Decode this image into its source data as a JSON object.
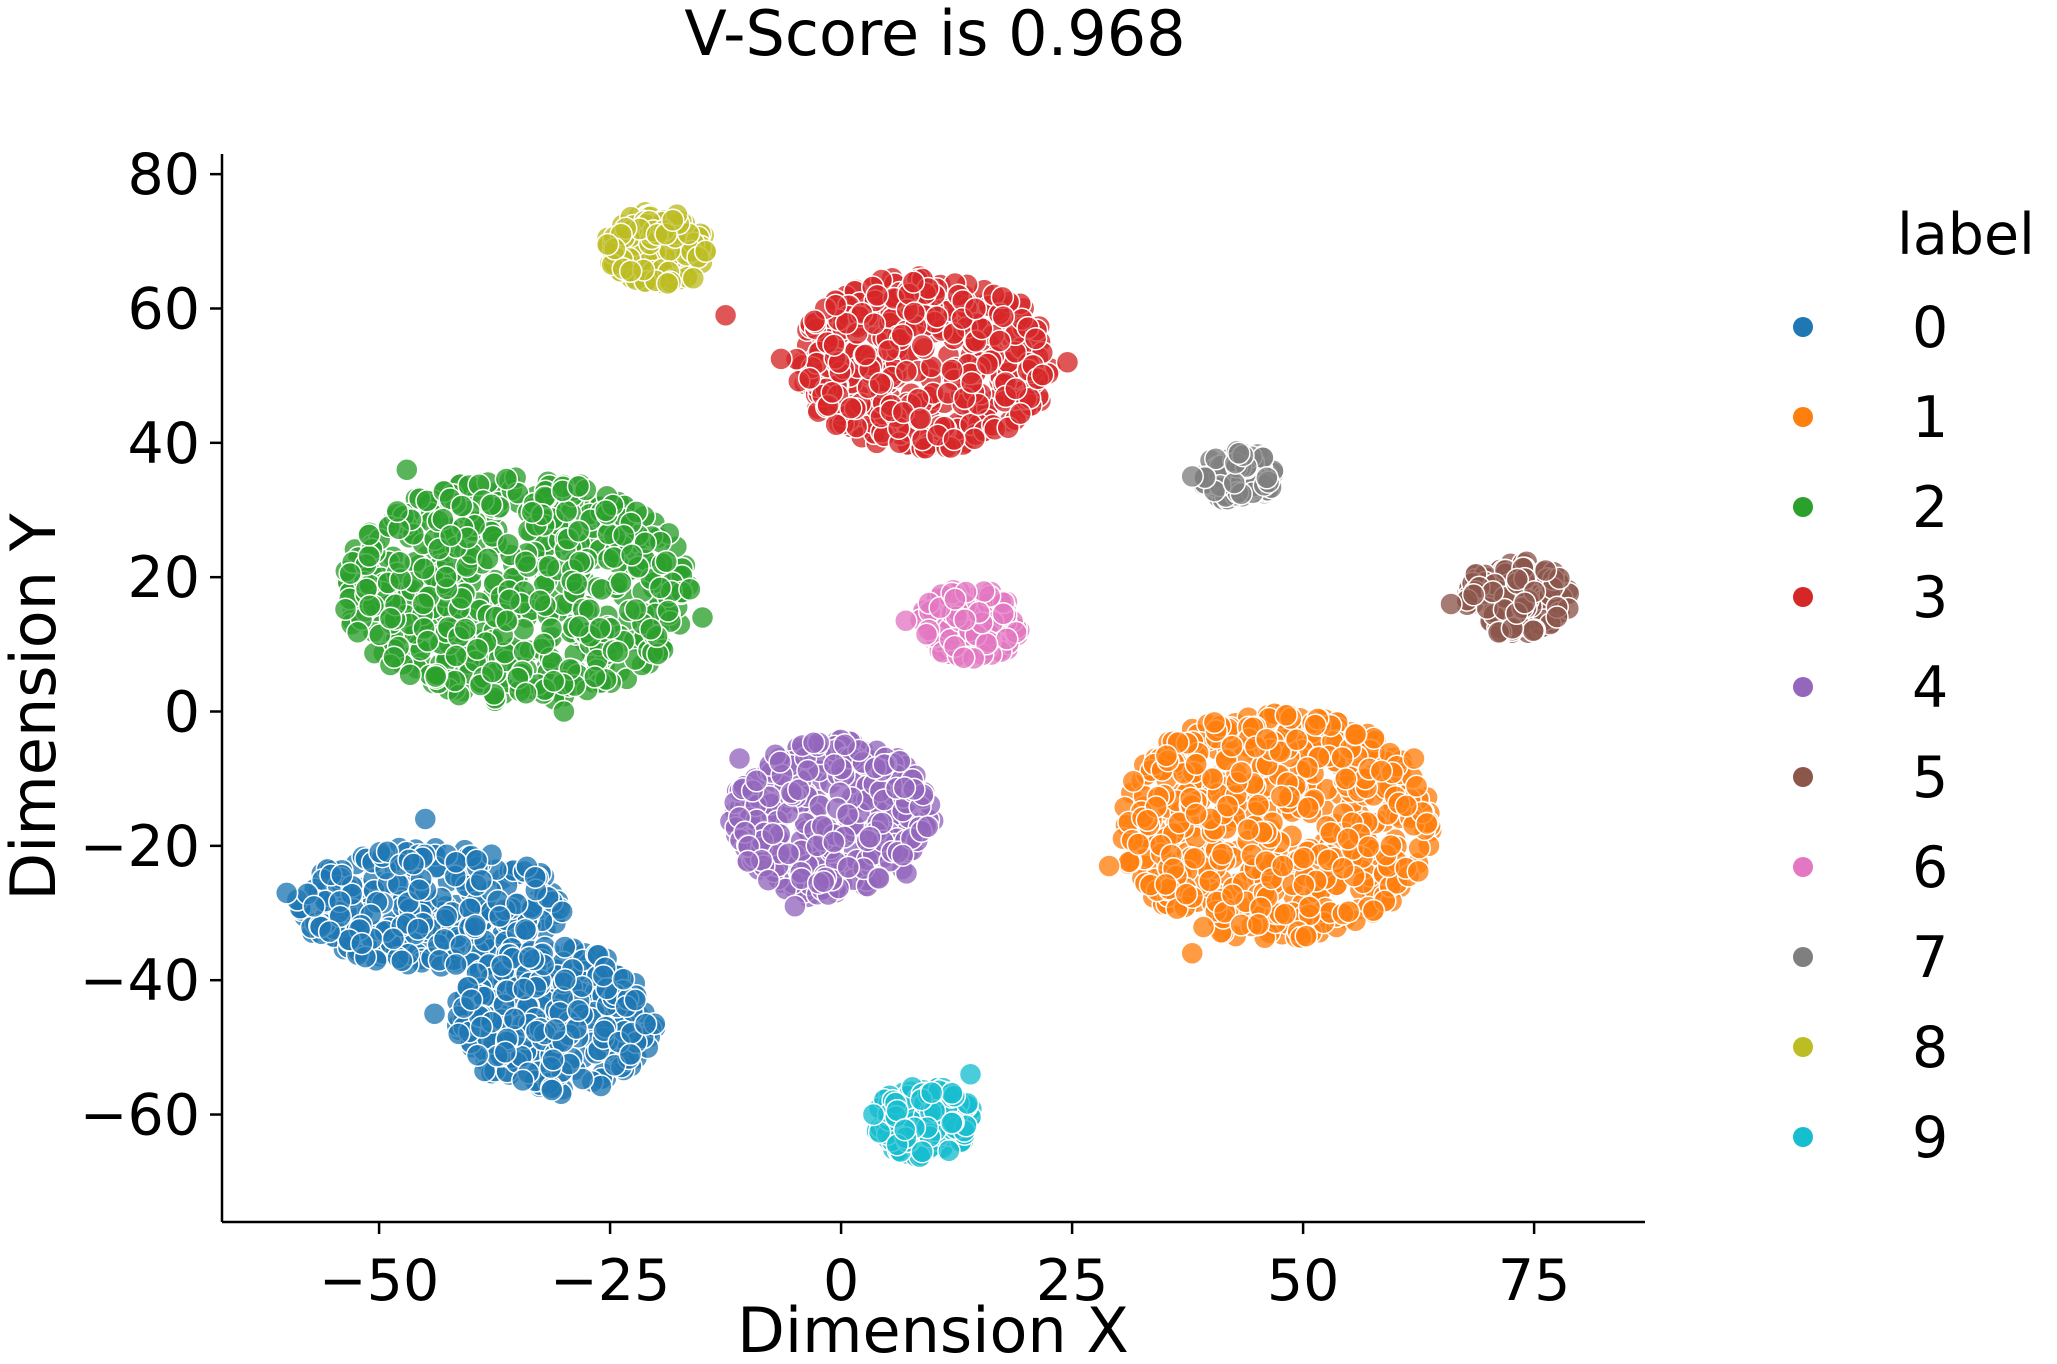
{
  "chart_data": {
    "type": "scatter",
    "title": "V-Score is 0.968",
    "xlabel": "Dimension X",
    "ylabel": "Dimension Y",
    "xlim": [
      -67,
      87
    ],
    "ylim": [
      -76,
      83
    ],
    "x_ticks": [
      -50,
      -25,
      0,
      25,
      50,
      75
    ],
    "x_tick_labels": [
      "−50",
      "−25",
      "0",
      "25",
      "50",
      "75"
    ],
    "y_ticks": [
      -60,
      -40,
      -20,
      0,
      20,
      40,
      60,
      80
    ],
    "y_tick_labels": [
      "−60",
      "−40",
      "−20",
      "0",
      "20",
      "40",
      "60",
      "80"
    ],
    "grid": false,
    "legend": {
      "title": "label",
      "placement": "right"
    },
    "series": [
      {
        "name": "0",
        "color": "#1f77b4",
        "clusters": [
          {
            "cx": -44,
            "cy": -29,
            "rx": 15,
            "ry": 9,
            "n": 320
          },
          {
            "cx": -31,
            "cy": -46,
            "rx": 11,
            "ry": 11,
            "n": 280
          }
        ],
        "outliers": [
          [
            -44,
            -45
          ],
          [
            -60,
            -27
          ],
          [
            -45,
            -16
          ]
        ]
      },
      {
        "name": "1",
        "color": "#ff7f0e",
        "clusters": [
          {
            "cx": 47,
            "cy": -17,
            "rx": 17,
            "ry": 17,
            "n": 600
          }
        ],
        "outliers": [
          [
            62,
            -7
          ],
          [
            29,
            -23
          ],
          [
            38,
            -36
          ]
        ]
      },
      {
        "name": "2",
        "color": "#2ca02c",
        "clusters": [
          {
            "cx": -35,
            "cy": 18,
            "rx": 19,
            "ry": 17,
            "n": 650
          }
        ],
        "outliers": [
          [
            -47,
            36
          ],
          [
            -15,
            14
          ],
          [
            -30,
            0
          ]
        ]
      },
      {
        "name": "3",
        "color": "#d62728",
        "clusters": [
          {
            "cx": 9,
            "cy": 52,
            "rx": 14,
            "ry": 13,
            "n": 450
          }
        ],
        "outliers": [
          [
            -12.5,
            59
          ],
          [
            -6.5,
            52.5
          ],
          [
            24.5,
            52
          ]
        ]
      },
      {
        "name": "4",
        "color": "#9467bd",
        "clusters": [
          {
            "cx": -1,
            "cy": -16,
            "rx": 11,
            "ry": 12,
            "n": 380
          }
        ],
        "outliers": [
          [
            -5,
            -29
          ],
          [
            -11,
            -7
          ]
        ]
      },
      {
        "name": "5",
        "color": "#8c564b",
        "clusters": [
          {
            "cx": 73,
            "cy": 17,
            "rx": 6,
            "ry": 5.5,
            "n": 160
          }
        ],
        "outliers": [
          [
            66,
            16
          ]
        ]
      },
      {
        "name": "6",
        "color": "#e377c2",
        "clusters": [
          {
            "cx": 14,
            "cy": 13,
            "rx": 5.5,
            "ry": 5.5,
            "n": 150
          }
        ],
        "outliers": [
          [
            7,
            13.5
          ]
        ]
      },
      {
        "name": "7",
        "color": "#7f7f7f",
        "clusters": [
          {
            "cx": 43,
            "cy": 35,
            "rx": 4,
            "ry": 4,
            "n": 100
          }
        ],
        "outliers": [
          [
            38,
            35
          ]
        ]
      },
      {
        "name": "8",
        "color": "#bcbd22",
        "clusters": [
          {
            "cx": -20,
            "cy": 69,
            "rx": 5.5,
            "ry": 5.5,
            "n": 140
          }
        ],
        "outliers": [
          [
            -16,
            64.5
          ]
        ]
      },
      {
        "name": "9",
        "color": "#17becf",
        "clusters": [
          {
            "cx": 9,
            "cy": -61,
            "rx": 5.5,
            "ry": 5.5,
            "n": 170
          }
        ],
        "outliers": [
          [
            14,
            -54
          ],
          [
            3.5,
            -60
          ]
        ]
      }
    ]
  }
}
